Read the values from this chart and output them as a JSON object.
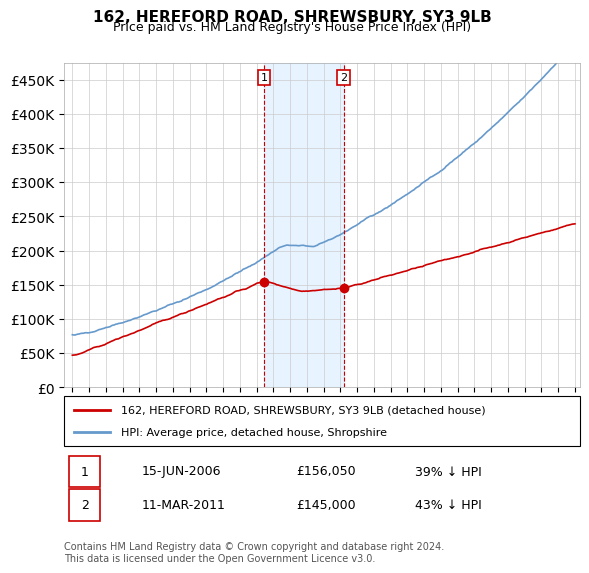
{
  "title": "162, HEREFORD ROAD, SHREWSBURY, SY3 9LB",
  "subtitle": "Price paid vs. HM Land Registry's House Price Index (HPI)",
  "legend_line1": "162, HEREFORD ROAD, SHREWSBURY, SY3 9LB (detached house)",
  "legend_line2": "HPI: Average price, detached house, Shropshire",
  "annotation_text": "Contains HM Land Registry data © Crown copyright and database right 2024.\nThis data is licensed under the Open Government Licence v3.0.",
  "sale1_date": "15-JUN-2006",
  "sale1_price": "£156,050",
  "sale1_hpi": "39% ↓ HPI",
  "sale2_date": "11-MAR-2011",
  "sale2_price": "£145,000",
  "sale2_hpi": "43% ↓ HPI",
  "house_color": "#cc0000",
  "hpi_color": "#6699cc",
  "sale_marker_color": "#cc0000",
  "vline_color": "#cc0000",
  "shaded_color": "#ddeeff",
  "ylim": [
    0,
    475000
  ],
  "yticks": [
    0,
    50000,
    100000,
    150000,
    200000,
    250000,
    300000,
    350000,
    400000,
    450000
  ],
  "ylabel_format": "£{0}K",
  "xstart_year": 1995,
  "xend_year": 2025,
  "sale1_year": 2006.45,
  "sale2_year": 2011.19
}
